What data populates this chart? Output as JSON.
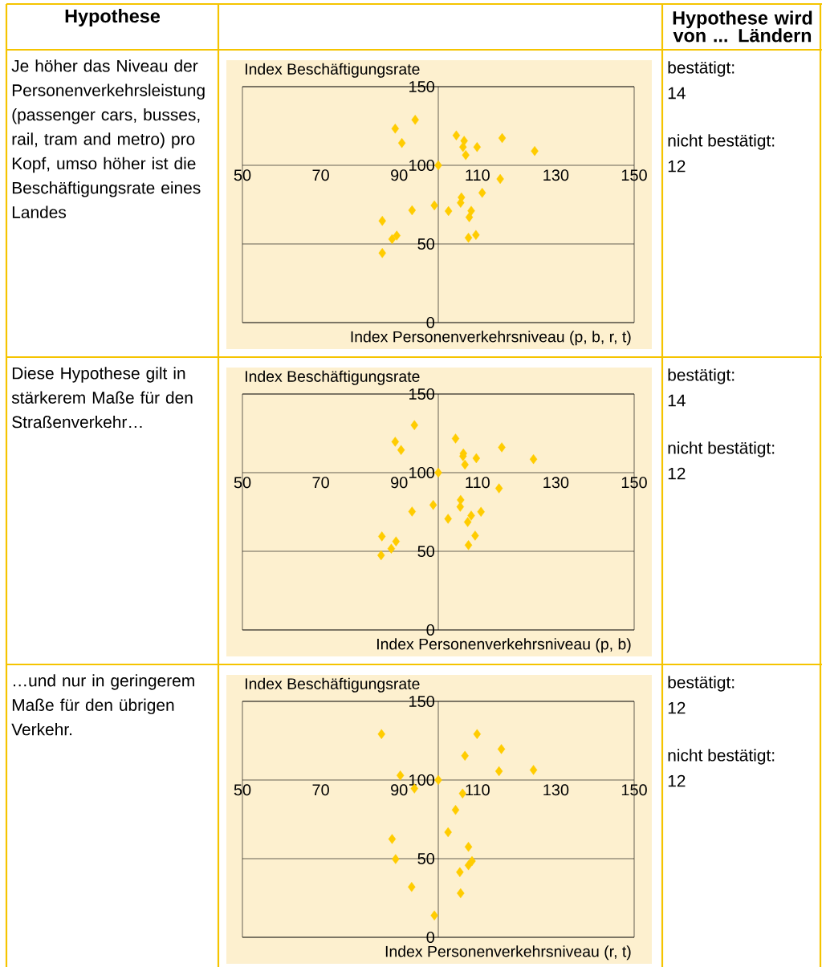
{
  "chart_data": [
    {
      "type": "other",
      "annotations": [
        "Hypothese",
        "Hypothese wird von ... Ländern"
      ]
    },
    {
      "type": "scatter",
      "xlabel": "Index Personenverkehrsniveau (p, b, r, t)",
      "ylabel": "Index Beschäftigungsrate",
      "annotations": [
        "Je höher das Niveau der Personenverkehrsleistung (passenger cars, busses, rail, tram and metro) pro Kopf, umso höher ist die Beschäftigungsrate eines Landes",
        "bestätigt:",
        "14",
        "nicht bestätigt:",
        "12"
      ],
      "x": [
        89.0,
        94.1,
        90.7,
        104.6,
        106.6,
        106.3,
        107.0,
        109.9,
        116.3,
        124.6,
        100,
        115.8,
        111.2,
        105.9,
        105.7,
        99.0,
        93.3,
        102.6,
        108.4,
        107.9,
        85.7,
        89.4,
        88.2,
        107.7,
        109.6,
        85.7
      ],
      "values": [
        123.3,
        128.9,
        114.2,
        119,
        115.6,
        111.6,
        106.5,
        111.6,
        117.3,
        109.1,
        100,
        91.3,
        82.5,
        79.6,
        76.2,
        74.5,
        71.4,
        70.9,
        71.1,
        67.0,
        64.7,
        55.3,
        53.1,
        53.9,
        55.7,
        44.2
      ],
      "color": "#ffcc00",
      "marker": "diamond",
      "xlim": [
        50,
        150
      ],
      "ylim": [
        0,
        150
      ],
      "xticks": [
        50,
        70,
        90,
        110,
        130,
        150
      ],
      "yticks": [
        0,
        50,
        100,
        150
      ],
      "grid": "y"
    },
    {
      "type": "scatter",
      "xlabel": "Index Personenverkehrsniveau (p, b)",
      "ylabel": "Index Beschäftigungsrate",
      "annotations": [
        "Diese Hypothese gilt in stärkerem Maße für den Straßenverkehr…",
        "bestätigt:",
        "14",
        "nicht bestätigt:",
        "12"
      ],
      "x": [
        93.9,
        89.0,
        90.5,
        104.4,
        106.4,
        106.3,
        106.8,
        109.7,
        116.2,
        124.3,
        100,
        115.5,
        105.7,
        105.6,
        98.7,
        93.3,
        110.9,
        108.4,
        107.5,
        102.5,
        85.6,
        89.2,
        88.0,
        85.4,
        109.4,
        107.7
      ],
      "values": [
        130.2,
        119.7,
        114.4,
        121.7,
        112.2,
        110.5,
        105.1,
        109.2,
        116.1,
        108.6,
        100,
        90,
        82.7,
        78.3,
        79.5,
        75.3,
        75.1,
        72.7,
        68.6,
        70.7,
        59.5,
        56.3,
        51.7,
        47.5,
        60,
        53.9
      ],
      "color": "#ffcc00",
      "marker": "diamond",
      "xlim": [
        50,
        150
      ],
      "ylim": [
        0,
        150
      ],
      "xticks": [
        50,
        70,
        90,
        110,
        130,
        150
      ],
      "yticks": [
        0,
        50,
        100,
        150
      ],
      "grid": "y"
    },
    {
      "type": "scatter",
      "xlabel": "Index Personenverkehrsniveau (r, t)",
      "ylabel": "Index Beschäftigungsrate",
      "annotations": [
        "…und nur in geringerem Maße für den übrigen Verkehr.",
        "bestätigt:",
        "12",
        "nicht bestätigt:",
        "12"
      ],
      "x": [
        85.5,
        109.9,
        116.1,
        106.8,
        115.5,
        124.3,
        90.3,
        100,
        93.9,
        106.2,
        104.4,
        102.5,
        88.2,
        107.7,
        89.1,
        108.6,
        107.7,
        105.5,
        93.2,
        105.7,
        99.0
      ],
      "values": [
        129.2,
        129.2,
        119.7,
        115.4,
        105.6,
        106.4,
        102.9,
        100,
        94.6,
        91.4,
        81,
        66.8,
        62.5,
        57.5,
        49.7,
        48.5,
        45.8,
        41.4,
        32,
        28,
        13.9
      ],
      "color": "#ffcc00",
      "marker": "diamond",
      "xlim": [
        50,
        150
      ],
      "ylim": [
        0,
        150
      ],
      "xticks": [
        50,
        70,
        90,
        110,
        130,
        150
      ],
      "yticks": [
        0,
        50,
        100,
        150
      ],
      "grid": "y"
    }
  ]
}
